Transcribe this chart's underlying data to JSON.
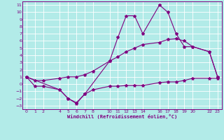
{
  "xlabel": "Windchill (Refroidissement éolien,°C)",
  "background_color": "#b2ebe8",
  "grid_color": "#ffffff",
  "line_color": "#800080",
  "xlim": [
    -0.5,
    23.5
  ],
  "ylim": [
    -3.5,
    11.5
  ],
  "xticks": [
    0,
    1,
    2,
    4,
    5,
    6,
    7,
    8,
    10,
    11,
    12,
    13,
    14,
    16,
    17,
    18,
    19,
    20,
    22,
    23
  ],
  "yticks": [
    -3,
    -2,
    -1,
    0,
    1,
    2,
    3,
    4,
    5,
    6,
    7,
    8,
    9,
    10,
    11
  ],
  "line1_x": [
    0,
    1,
    2,
    4,
    5,
    6,
    7,
    8,
    10,
    11,
    12,
    13,
    14,
    16,
    17,
    18,
    19,
    20,
    22,
    23
  ],
  "line1_y": [
    1,
    -0.3,
    -0.3,
    -0.8,
    -2.0,
    -2.6,
    -1.4,
    -0.8,
    -0.3,
    -0.3,
    -0.2,
    -0.2,
    -0.2,
    0.2,
    0.3,
    0.3,
    0.5,
    0.8,
    0.8,
    0.8
  ],
  "line2_x": [
    0,
    1,
    2,
    4,
    5,
    6,
    7,
    8,
    10,
    11,
    12,
    13,
    14,
    16,
    17,
    18,
    19,
    20,
    22,
    23
  ],
  "line2_y": [
    1.0,
    0.5,
    0.5,
    0.8,
    1.0,
    1.0,
    1.3,
    1.8,
    3.2,
    3.8,
    4.5,
    5.0,
    5.5,
    5.8,
    6.2,
    6.3,
    6.0,
    5.2,
    4.5,
    1.0
  ],
  "line3_x": [
    0,
    4,
    5,
    6,
    7,
    10,
    11,
    12,
    13,
    14,
    16,
    17,
    18,
    19,
    20,
    22,
    23
  ],
  "line3_y": [
    1.0,
    -0.8,
    -2.0,
    -2.7,
    -1.4,
    3.2,
    6.5,
    9.5,
    9.5,
    7.0,
    11.0,
    10.0,
    7.0,
    5.2,
    5.2,
    4.5,
    1.0
  ]
}
